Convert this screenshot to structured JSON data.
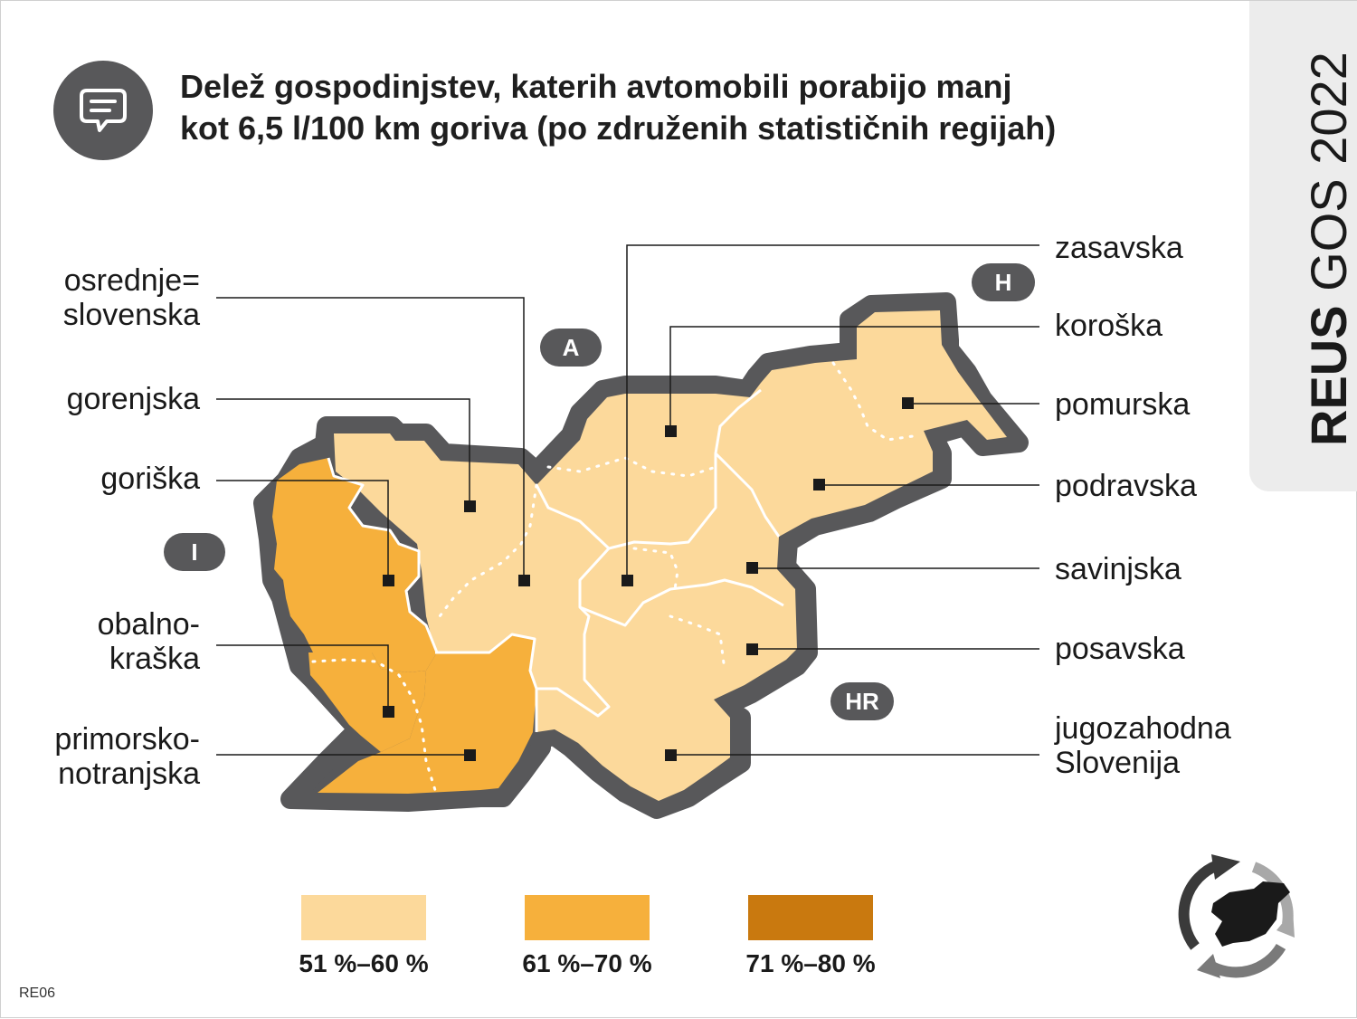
{
  "title": {
    "line1": "Delež gospodinjstev, katerih avtomobili porabijo manj",
    "line2": "kot 6,5 l/100 km goriva (po združenih statističnih regijah)"
  },
  "side_tab": {
    "bold": "REUS",
    "normal": "GOS 2022"
  },
  "colors": {
    "bin_51_60": "#fcd99b",
    "bin_61_70": "#f6b03c",
    "bin_71_80": "#c9790f",
    "outline": "#58585a"
  },
  "countries": {
    "A": "A",
    "H": "H",
    "I": "I",
    "HR": "HR"
  },
  "regions_left": [
    {
      "label": "osrednje=\nslovenska",
      "line1": "osrednje=",
      "line2": "slovenska",
      "class": "51 %–60 %"
    },
    {
      "label": "gorenjska",
      "class": "51 %–60 %"
    },
    {
      "label": "goriška",
      "class": "61 %–70 %"
    },
    {
      "label": "obalno-kraška",
      "line1": "obalno-",
      "line2": "kraška",
      "class": "61 %–70 %"
    },
    {
      "label": "primorsko-notranjska",
      "line1": "primorsko-",
      "line2": "notranjska",
      "class": "61 %–70 %"
    }
  ],
  "regions_right": [
    {
      "label": "zasavska",
      "class": "51 %–60 %"
    },
    {
      "label": "koroška",
      "class": "51 %–60 %"
    },
    {
      "label": "pomurska",
      "class": "51 %–60 %"
    },
    {
      "label": "podravska",
      "class": "51 %–60 %"
    },
    {
      "label": "savinjska",
      "class": "51 %–60 %"
    },
    {
      "label": "posavska",
      "class": "51 %–60 %"
    },
    {
      "label": "jugozahodna Slovenija",
      "line1": "jugozahodna",
      "line2": "Slovenija",
      "class": "51 %–60 %"
    }
  ],
  "legend": [
    {
      "label": "51 %–60 %",
      "color": "#fcd99b"
    },
    {
      "label": "61 %–70 %",
      "color": "#f6b03c"
    },
    {
      "label": "71 %–80 %",
      "color": "#c9790f"
    }
  ],
  "code": "RE06",
  "icons": {
    "title_icon": "speech-bubble-icon",
    "logo": "recycle-slovenia-logo"
  }
}
